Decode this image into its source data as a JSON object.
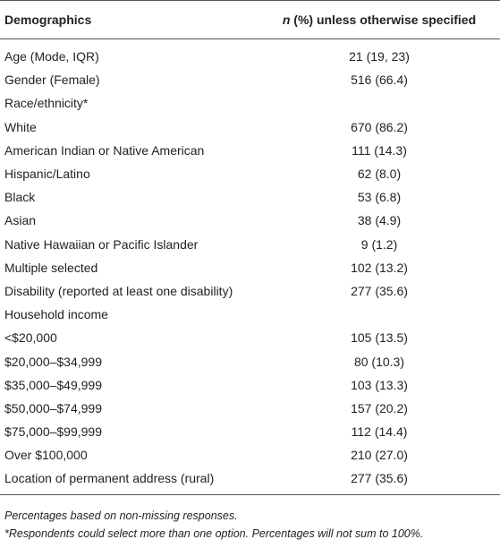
{
  "header": {
    "col1": "Demographics",
    "col2_italic": "n",
    "col2_rest": " (%) unless otherwise specified"
  },
  "rows": [
    {
      "label": "Age (Mode, IQR)",
      "value": "21 (19, 23)"
    },
    {
      "label": "Gender (Female)",
      "value": "516 (66.4)"
    },
    {
      "label": "Race/ethnicity*",
      "value": ""
    },
    {
      "label": "White",
      "value": "670 (86.2)"
    },
    {
      "label": "American Indian or Native American",
      "value": "111 (14.3)"
    },
    {
      "label": "Hispanic/Latino",
      "value": "62 (8.0)"
    },
    {
      "label": "Black",
      "value": "53 (6.8)"
    },
    {
      "label": "Asian",
      "value": "38 (4.9)"
    },
    {
      "label": "Native Hawaiian or Pacific Islander",
      "value": "9 (1.2)"
    },
    {
      "label": "Multiple selected",
      "value": "102 (13.2)"
    },
    {
      "label": "Disability (reported at least one disability)",
      "value": "277 (35.6)"
    },
    {
      "label": "Household income",
      "value": ""
    },
    {
      "label": "<$20,000",
      "value": "105 (13.5)"
    },
    {
      "label": "$20,000–$34,999",
      "value": "80 (10.3)"
    },
    {
      "label": "$35,000–$49,999",
      "value": "103 (13.3)"
    },
    {
      "label": "$50,000–$74,999",
      "value": "157 (20.2)"
    },
    {
      "label": "$75,000–$99,999",
      "value": "112 (14.4)"
    },
    {
      "label": "Over $100,000",
      "value": "210 (27.0)"
    },
    {
      "label": "Location of permanent address (rural)",
      "value": "277 (35.6)"
    }
  ],
  "footnotes": {
    "note1": "Percentages based on non-missing responses.",
    "note2": "*Respondents could select more than one option. Percentages will not sum to 100%."
  }
}
